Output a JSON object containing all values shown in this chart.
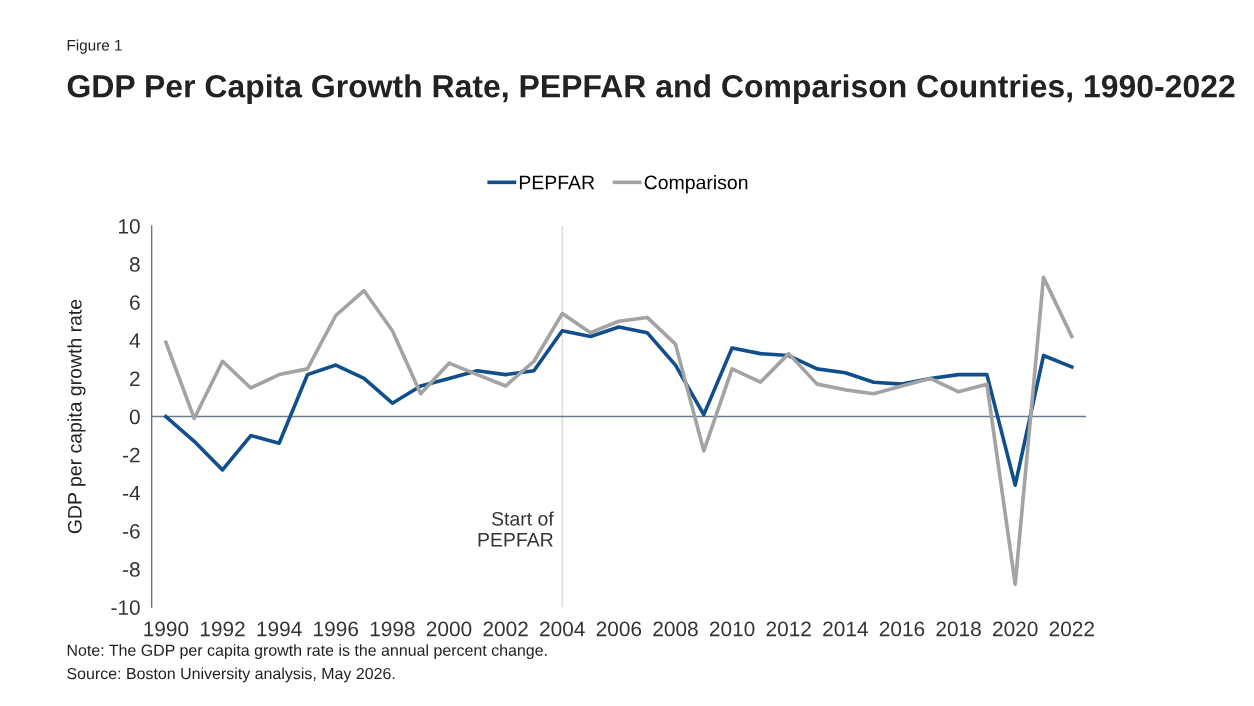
{
  "chart_data": {
    "type": "line",
    "title": "GDP Per Capita Growth Rate, PEPFAR and Comparison Countries, 1990-2022",
    "ylabel": "GDP per capita growth rate",
    "categories": [
      "1990",
      null,
      "1992",
      null,
      "1994",
      null,
      "1996",
      null,
      "1998",
      null,
      "2000",
      null,
      "2002",
      null,
      "2004",
      null,
      "2006",
      null,
      "2008",
      null,
      "2010",
      null,
      "2012",
      null,
      "2014",
      null,
      "2016",
      null,
      "2018",
      null,
      "2020",
      null,
      "2022"
    ],
    "series": [
      {
        "name": "PEPFAR",
        "color": "#0f4f8c",
        "values": [
          0,
          -1.3,
          -2.8,
          -1.0,
          -1.4,
          2.2,
          2.7,
          2.0,
          0.7,
          1.6,
          2.0,
          2.4,
          2.2,
          2.4,
          4.5,
          4.2,
          4.7,
          4.4,
          2.7,
          0.1,
          3.6,
          3.3,
          3.2,
          2.5,
          2.3,
          1.8,
          1.7,
          2.0,
          2.2,
          2.2,
          -3.6,
          3.2,
          2.6
        ]
      },
      {
        "name": "Comparison",
        "color": "#a3a3a3",
        "values": [
          3.9,
          -0.1,
          2.9,
          1.5,
          2.2,
          2.5,
          5.3,
          6.6,
          4.5,
          1.2,
          2.8,
          2.2,
          1.6,
          2.9,
          5.4,
          4.4,
          5.0,
          5.2,
          3.8,
          -1.8,
          2.5,
          1.8,
          3.3,
          1.7,
          1.4,
          1.2,
          1.6,
          2.0,
          1.3,
          1.7,
          -8.8,
          7.3,
          4.2
        ]
      }
    ],
    "ylim": [
      -10,
      10
    ],
    "yticks": [
      -10,
      -8,
      -6,
      -4,
      -2,
      0,
      2,
      4,
      6,
      8,
      10
    ],
    "ref_lines": [
      {
        "axis": "x",
        "value": "2004",
        "label": "Start of\nPEPFAR",
        "color": "#d9d9d9"
      }
    ],
    "annotations": [
      "Figure 1",
      "Note: The GDP per capita growth rate is the annual percent change.",
      "Source: Boston University analysis, May 2026."
    ],
    "legend": "top",
    "grid": false,
    "marker": "none",
    "line_style": "solid"
  }
}
